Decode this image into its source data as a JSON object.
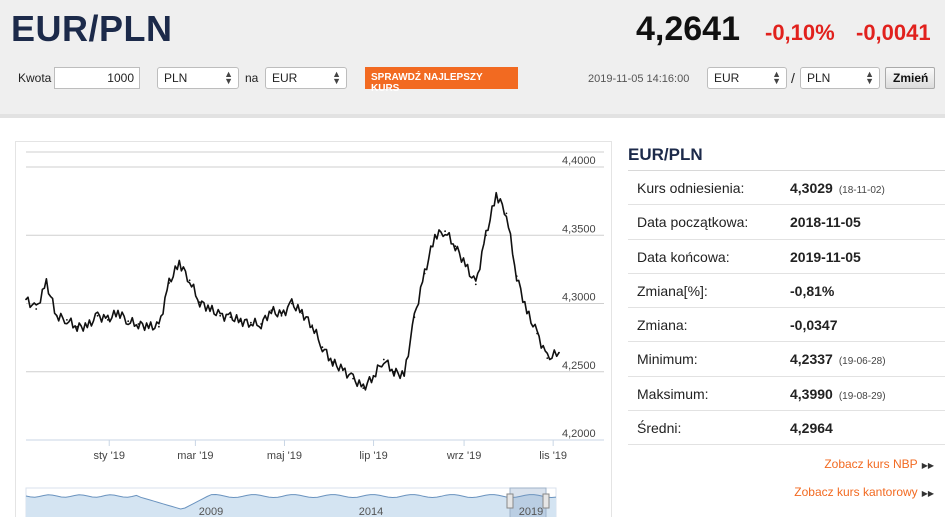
{
  "header": {
    "pair": "EUR/PLN",
    "rate": "4,2641",
    "change_pct": "-0,10%",
    "change_abs": "-0,0041"
  },
  "converter": {
    "amount_label": "Kwota",
    "amount_value": "1000",
    "from_currency": "PLN",
    "to_label": "na",
    "to_currency": "EUR",
    "best_rate_button": "SPRAWDŹ NAJLEPSZY KURS"
  },
  "timestamp": "2019-11-05 14:16:00",
  "pair_switch": {
    "base": "EUR",
    "separator": "/",
    "quote": "PLN",
    "change_button": "Zmień"
  },
  "info": {
    "title": "EUR/PLN",
    "rows": [
      {
        "label": "Kurs odniesienia:",
        "value": "4,3029",
        "date": "(18-11-02)"
      },
      {
        "label": "Data początkowa:",
        "value": "2018-11-05",
        "date": ""
      },
      {
        "label": "Data końcowa:",
        "value": "2019-11-05",
        "date": ""
      },
      {
        "label": "Zmiana[%]:",
        "value": "-0,81%",
        "date": ""
      },
      {
        "label": "Zmiana:",
        "value": "-0,0347",
        "date": ""
      },
      {
        "label": "Minimum:",
        "value": "4,2337",
        "date": "(19-06-28)"
      },
      {
        "label": "Maksimum:",
        "value": "4,3990",
        "date": "(19-08-29)"
      },
      {
        "label": "Średni:",
        "value": "4,2964",
        "date": ""
      }
    ],
    "links": [
      {
        "label": "Zobacz kurs NBP"
      },
      {
        "label": "Zobacz kurs kantorowy"
      }
    ]
  },
  "colors": {
    "accent": "#f26a21",
    "negative": "#e1211d",
    "title": "#1c2a4a",
    "navigator_fill": "#d4e4f2",
    "navigator_line": "#6a93bf"
  },
  "chart_data": {
    "type": "line",
    "title": "",
    "xlabel": "",
    "ylabel": "",
    "ylim": [
      4.2,
      4.4
    ],
    "y_ticks": [
      "4,2000",
      "4,2500",
      "4,3000",
      "4,3500",
      "4,4000"
    ],
    "x_range": [
      "2018-11-05",
      "2019-11-05"
    ],
    "x_ticks": [
      {
        "label": "sty '19",
        "date": "2019-01-01"
      },
      {
        "label": "mar '19",
        "date": "2019-03-01"
      },
      {
        "label": "maj '19",
        "date": "2019-05-01"
      },
      {
        "label": "lip '19",
        "date": "2019-07-01"
      },
      {
        "label": "wrz '19",
        "date": "2019-09-01"
      },
      {
        "label": "lis '19",
        "date": "2019-11-01"
      }
    ],
    "grid": true,
    "series": [
      {
        "x": [
          "2018-11-05",
          "2018-11-12",
          "2018-11-19",
          "2018-11-26",
          "2018-12-03",
          "2018-12-10",
          "2018-12-17",
          "2018-12-24",
          "2018-12-31",
          "2019-01-07",
          "2019-01-14",
          "2019-01-21",
          "2019-01-28",
          "2019-02-04",
          "2019-02-11",
          "2019-02-18",
          "2019-02-25",
          "2019-03-04",
          "2019-03-11",
          "2019-03-18",
          "2019-03-25",
          "2019-04-01",
          "2019-04-08",
          "2019-04-15",
          "2019-04-22",
          "2019-04-29",
          "2019-05-06",
          "2019-05-13",
          "2019-05-20",
          "2019-05-27",
          "2019-06-03",
          "2019-06-10",
          "2019-06-17",
          "2019-06-24",
          "2019-07-01",
          "2019-07-08",
          "2019-07-15",
          "2019-07-22",
          "2019-07-29",
          "2019-08-05",
          "2019-08-12",
          "2019-08-19",
          "2019-08-26",
          "2019-09-02",
          "2019-09-09",
          "2019-09-16",
          "2019-09-23",
          "2019-09-30",
          "2019-10-07",
          "2019-10-14",
          "2019-10-21",
          "2019-10-28",
          "2019-11-05"
        ],
        "values": [
          4.303,
          4.296,
          4.315,
          4.291,
          4.288,
          4.283,
          4.283,
          4.291,
          4.288,
          4.294,
          4.287,
          4.285,
          4.283,
          4.283,
          4.315,
          4.33,
          4.317,
          4.301,
          4.296,
          4.291,
          4.29,
          4.287,
          4.286,
          4.285,
          4.295,
          4.291,
          4.3,
          4.293,
          4.284,
          4.268,
          4.257,
          4.251,
          4.245,
          4.238,
          4.247,
          4.259,
          4.25,
          4.247,
          4.29,
          4.322,
          4.35,
          4.353,
          4.342,
          4.328,
          4.314,
          4.35,
          4.38,
          4.366,
          4.32,
          4.294,
          4.278,
          4.26,
          4.264
        ]
      }
    ]
  },
  "navigator": {
    "year_labels": [
      "2009",
      "2014",
      "2019"
    ]
  }
}
